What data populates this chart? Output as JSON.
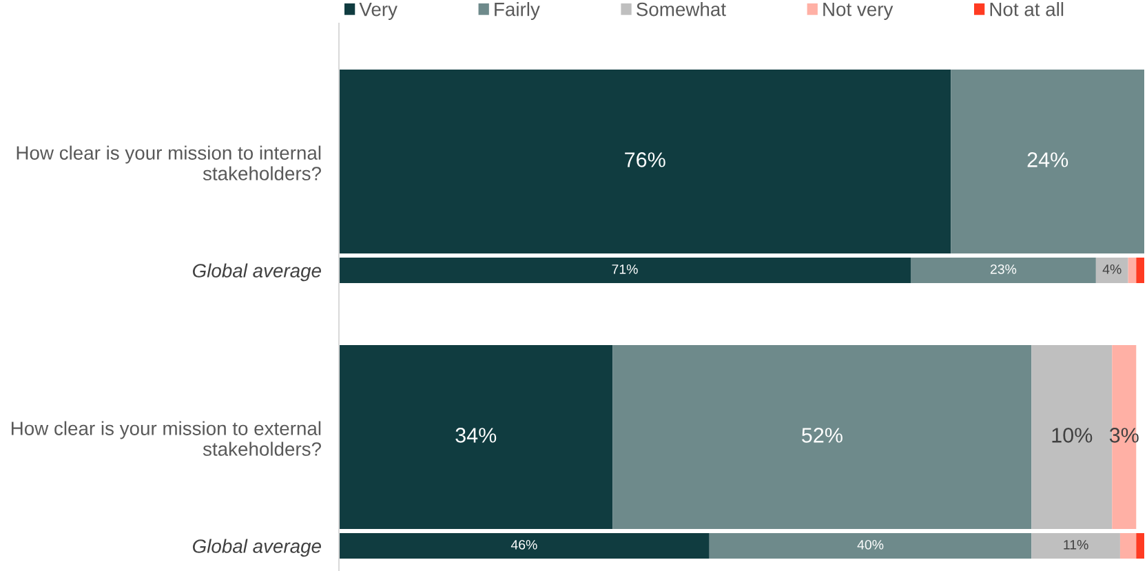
{
  "chart_data": {
    "type": "bar",
    "orientation": "horizontal",
    "stacked": true,
    "categories": [
      "How clear is your mission to internal stakeholders?",
      "Global average",
      "How clear is your mission to external stakeholders?",
      "Global average"
    ],
    "series": [
      {
        "name": "Very",
        "color": "#103c40",
        "values": [
          76,
          71,
          34,
          46
        ],
        "value_labels": [
          "76%",
          "71%",
          "34%",
          "46%"
        ]
      },
      {
        "name": "Fairly",
        "color": "#6e8a8b",
        "values": [
          24,
          23,
          52,
          40
        ],
        "value_labels": [
          "24%",
          "23%",
          "52%",
          "40%"
        ]
      },
      {
        "name": "Somewhat",
        "color": "#bfbfbf",
        "values": [
          null,
          4,
          10,
          11
        ],
        "value_labels": [
          null,
          "4%",
          "10%",
          "11%"
        ]
      },
      {
        "name": "Not very",
        "color": "#ffb0a5",
        "values": [
          null,
          1,
          3,
          2
        ],
        "value_labels": [
          null,
          null,
          "3%",
          null
        ]
      },
      {
        "name": "Not at all",
        "color": "#ff3b22",
        "values": [
          null,
          1,
          null,
          1
        ]
      }
    ],
    "xlim": [
      0,
      100
    ],
    "legend": "top",
    "tick_labels": "y"
  }
}
